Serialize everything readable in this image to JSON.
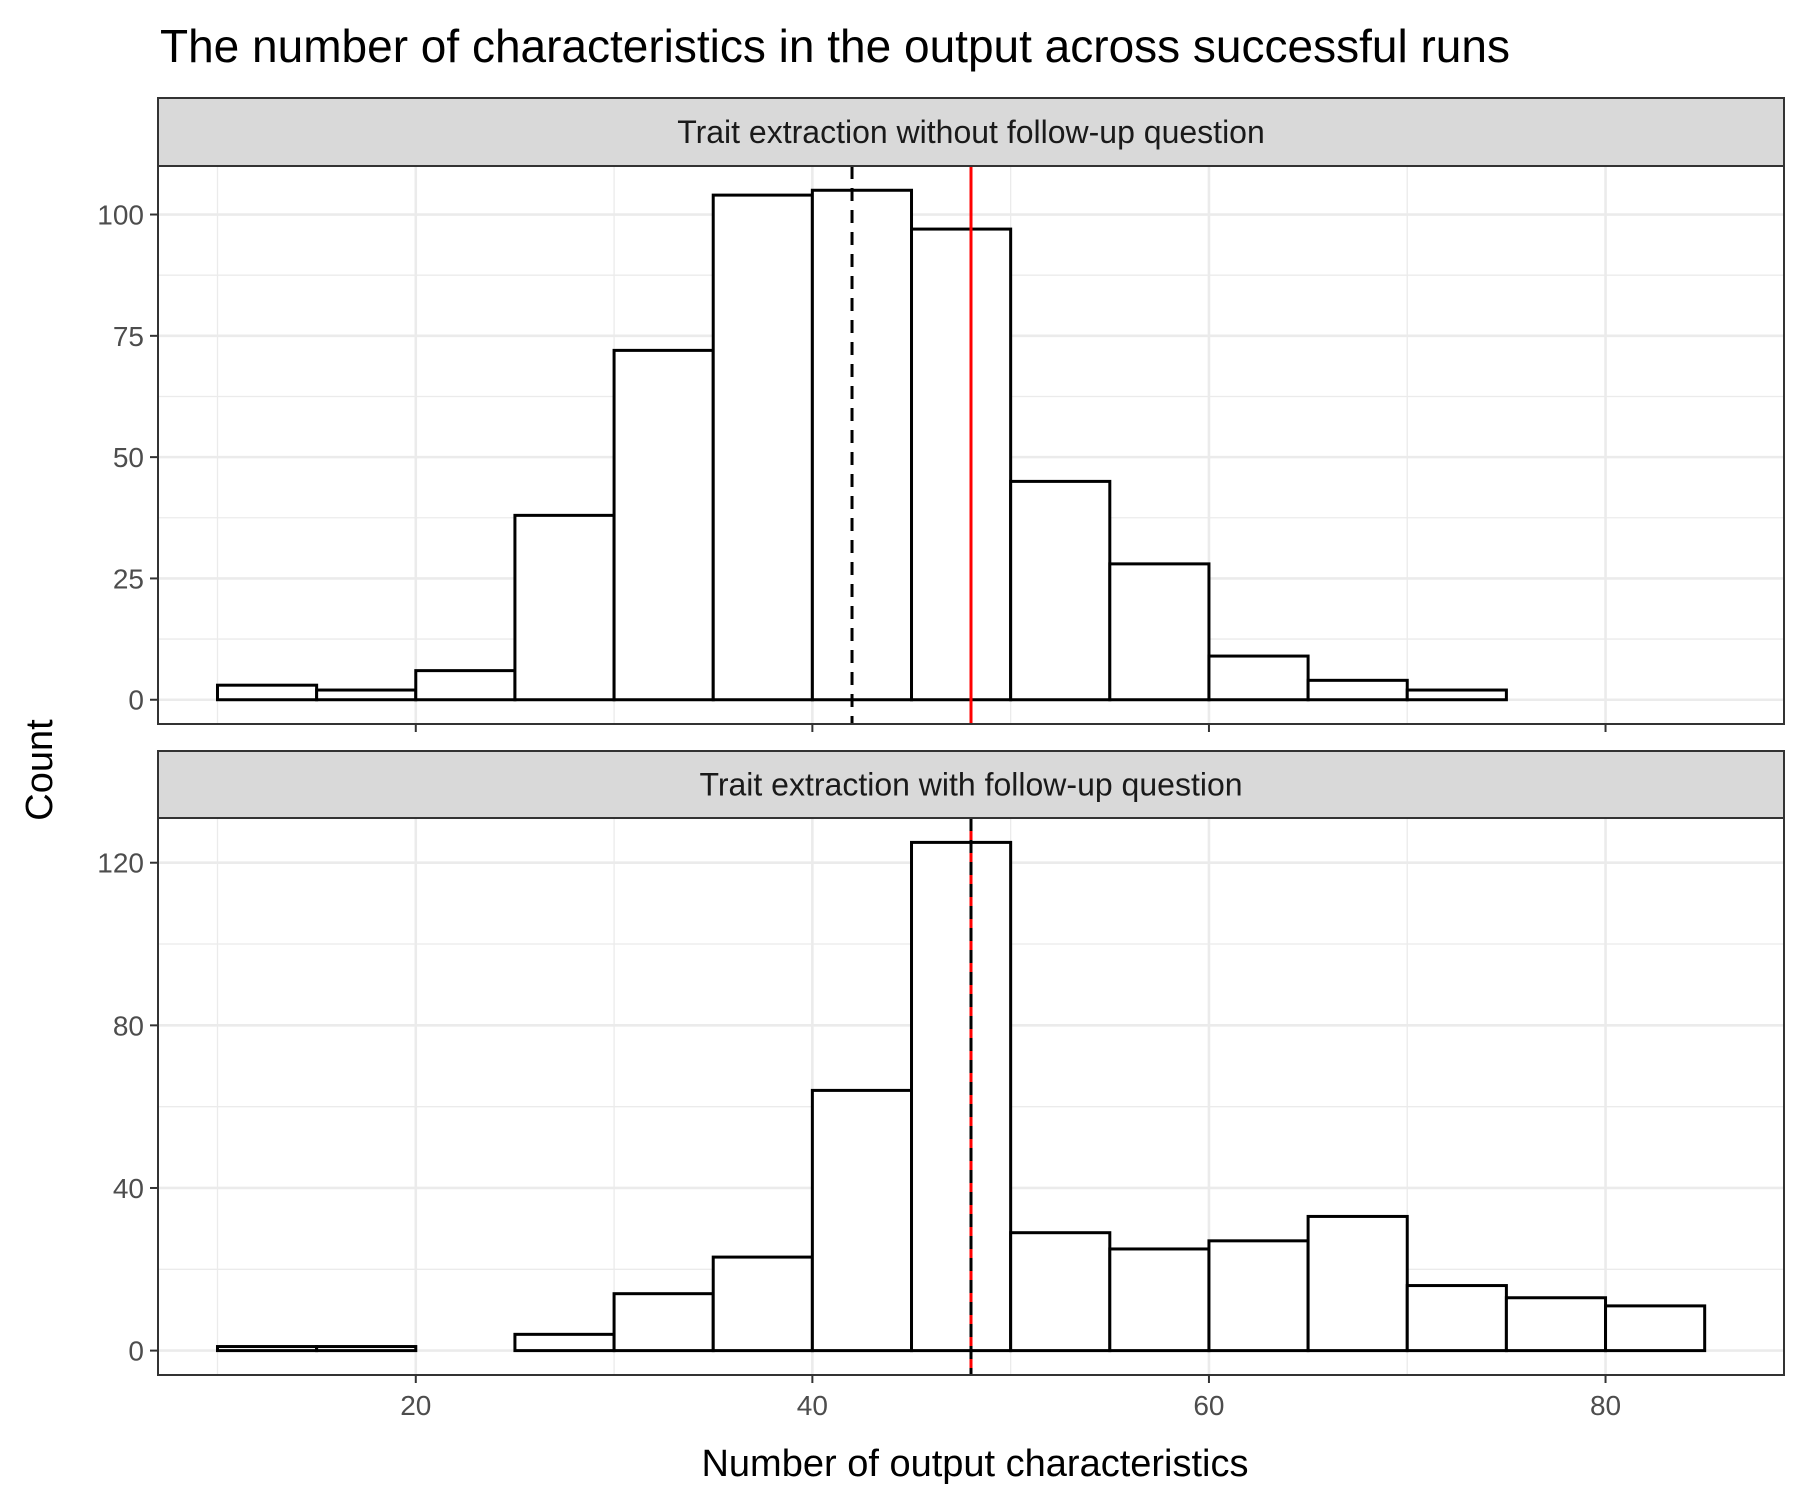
{
  "chart_data": {
    "type": "bar",
    "title": "The number of characteristics in the output across successful runs",
    "xlabel": "Number of output characteristics",
    "ylabel": "Count",
    "xlim": [
      7,
      89
    ],
    "x_ticks": [
      20,
      40,
      60,
      80
    ],
    "bin_width": 5,
    "grid": true,
    "legend": "none",
    "colors": {
      "bar_fill": "#ffffff",
      "bar_outline": "#000000",
      "strip_fill": "#d9d9d9",
      "mean_line": "#000000",
      "reference_line": "#ff0000",
      "grid": "#ebebeb"
    },
    "panels": [
      {
        "label": "Trait extraction without follow-up question",
        "bin_starts": [
          10,
          15,
          20,
          25,
          30,
          35,
          40,
          45,
          50,
          55,
          60,
          65,
          70,
          75,
          80
        ],
        "values": [
          3,
          2,
          6,
          38,
          72,
          104,
          105,
          97,
          45,
          28,
          9,
          4,
          2,
          0,
          0
        ],
        "ylim": [
          -5,
          110
        ],
        "y_ticks": [
          0,
          25,
          50,
          75,
          100
        ],
        "dashed_line_x": 42,
        "red_line_x": 48
      },
      {
        "label": "Trait extraction with follow-up question",
        "bin_starts": [
          10,
          15,
          20,
          25,
          30,
          35,
          40,
          45,
          50,
          55,
          60,
          65,
          70,
          75,
          80
        ],
        "values": [
          1,
          1,
          0,
          4,
          14,
          23,
          64,
          125,
          29,
          25,
          27,
          33,
          16,
          13,
          11
        ],
        "ylim": [
          -6,
          131
        ],
        "y_ticks": [
          0,
          40,
          80,
          120
        ],
        "dashed_line_x": 48,
        "red_line_x": 48
      }
    ]
  }
}
